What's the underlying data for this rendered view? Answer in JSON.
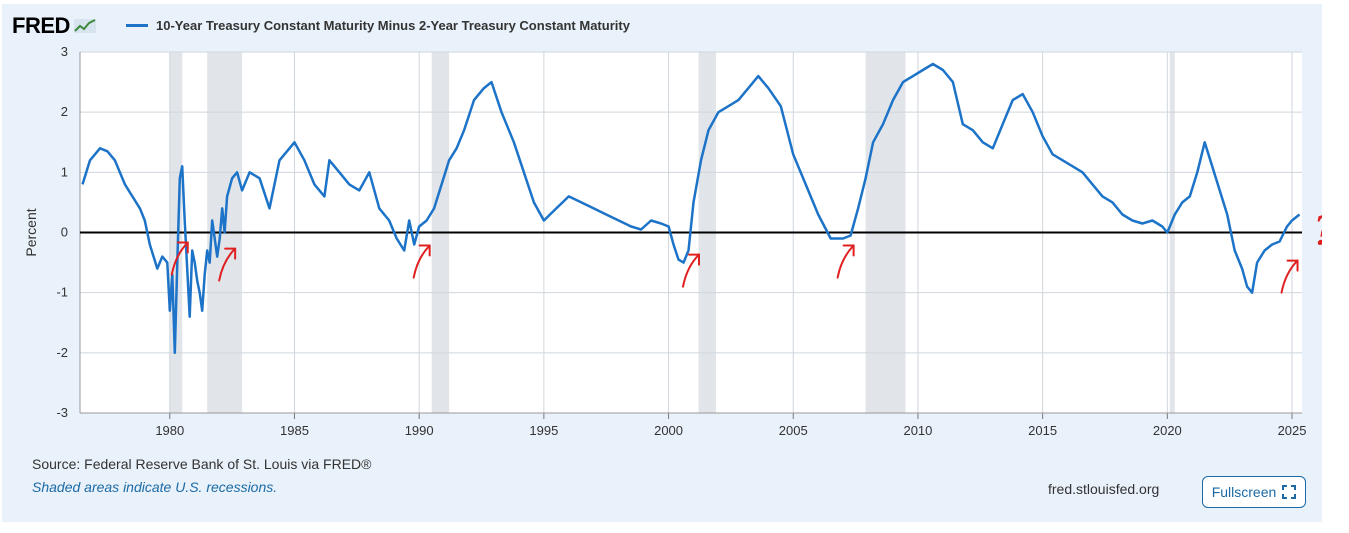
{
  "brand": {
    "name": "FRED",
    "logo_icon": "fred-chart-logo-icon"
  },
  "chart_data": {
    "type": "line",
    "series": [
      {
        "name": "10-Year Treasury Constant Maturity Minus 2-Year Treasury Constant Maturity",
        "color": "#1c73c7",
        "x": [
          1976.5,
          1976.8,
          1977.2,
          1977.5,
          1977.8,
          1978.2,
          1978.5,
          1978.8,
          1979.0,
          1979.2,
          1979.5,
          1979.7,
          1979.9,
          1980.0,
          1980.1,
          1980.2,
          1980.3,
          1980.4,
          1980.5,
          1980.6,
          1980.7,
          1980.8,
          1980.9,
          1981.0,
          1981.1,
          1981.2,
          1981.3,
          1981.4,
          1981.5,
          1981.6,
          1981.7,
          1981.8,
          1981.9,
          1982.0,
          1982.1,
          1982.2,
          1982.3,
          1982.5,
          1982.7,
          1982.9,
          1983.2,
          1983.6,
          1984.0,
          1984.4,
          1984.8,
          1985.0,
          1985.4,
          1985.8,
          1986.2,
          1986.4,
          1986.8,
          1987.2,
          1987.6,
          1988.0,
          1988.4,
          1988.8,
          1989.1,
          1989.4,
          1989.6,
          1989.8,
          1990.0,
          1990.3,
          1990.6,
          1990.9,
          1991.2,
          1991.5,
          1991.8,
          1992.2,
          1992.6,
          1992.9,
          1993.3,
          1993.8,
          1994.2,
          1994.6,
          1995.0,
          1995.5,
          1996.0,
          1996.5,
          1997.0,
          1997.5,
          1998.0,
          1998.5,
          1998.9,
          1999.3,
          1999.7,
          2000.0,
          2000.2,
          2000.4,
          2000.6,
          2000.8,
          2001.0,
          2001.3,
          2001.6,
          2002.0,
          2002.4,
          2002.8,
          2003.2,
          2003.6,
          2004.0,
          2004.5,
          2005.0,
          2005.5,
          2006.0,
          2006.5,
          2007.0,
          2007.3,
          2007.6,
          2007.9,
          2008.2,
          2008.6,
          2009.0,
          2009.4,
          2009.8,
          2010.2,
          2010.6,
          2011.0,
          2011.4,
          2011.8,
          2012.2,
          2012.6,
          2013.0,
          2013.4,
          2013.8,
          2014.2,
          2014.6,
          2015.0,
          2015.4,
          2015.8,
          2016.2,
          2016.6,
          2017.0,
          2017.4,
          2017.8,
          2018.2,
          2018.6,
          2019.0,
          2019.4,
          2019.8,
          2020.0,
          2020.3,
          2020.6,
          2020.9,
          2021.2,
          2021.5,
          2021.8,
          2022.1,
          2022.4,
          2022.7,
          2023.0,
          2023.2,
          2023.4,
          2023.6,
          2023.9,
          2024.2,
          2024.5,
          2024.8,
          2025.0,
          2025.3
        ],
        "y": [
          0.8,
          1.2,
          1.4,
          1.35,
          1.2,
          0.8,
          0.6,
          0.4,
          0.2,
          -0.2,
          -0.6,
          -0.4,
          -0.5,
          -1.3,
          -0.7,
          -2.0,
          -0.5,
          0.9,
          1.1,
          0.2,
          -0.6,
          -1.4,
          -0.3,
          -0.5,
          -0.8,
          -1.0,
          -1.3,
          -0.7,
          -0.3,
          -0.5,
          0.2,
          -0.1,
          -0.4,
          -0.1,
          0.4,
          0.0,
          0.6,
          0.9,
          1.0,
          0.7,
          1.0,
          0.9,
          0.4,
          1.2,
          1.4,
          1.5,
          1.2,
          0.8,
          0.6,
          1.2,
          1.0,
          0.8,
          0.7,
          1.0,
          0.4,
          0.2,
          -0.1,
          -0.3,
          0.2,
          -0.2,
          0.1,
          0.2,
          0.4,
          0.8,
          1.2,
          1.4,
          1.7,
          2.2,
          2.4,
          2.5,
          2.0,
          1.5,
          1.0,
          0.5,
          0.2,
          0.4,
          0.6,
          0.5,
          0.4,
          0.3,
          0.2,
          0.1,
          0.05,
          0.2,
          0.15,
          0.1,
          -0.2,
          -0.45,
          -0.5,
          -0.3,
          0.5,
          1.2,
          1.7,
          2.0,
          2.1,
          2.2,
          2.4,
          2.6,
          2.4,
          2.1,
          1.3,
          0.8,
          0.3,
          -0.1,
          -0.1,
          -0.05,
          0.4,
          0.9,
          1.5,
          1.8,
          2.2,
          2.5,
          2.6,
          2.7,
          2.8,
          2.7,
          2.5,
          1.8,
          1.7,
          1.5,
          1.4,
          1.8,
          2.2,
          2.3,
          2.0,
          1.6,
          1.3,
          1.2,
          1.1,
          1.0,
          0.8,
          0.6,
          0.5,
          0.3,
          0.2,
          0.15,
          0.2,
          0.1,
          0.0,
          0.3,
          0.5,
          0.6,
          1.0,
          1.5,
          1.1,
          0.7,
          0.3,
          -0.3,
          -0.6,
          -0.9,
          -1.0,
          -0.5,
          -0.3,
          -0.2,
          -0.15,
          0.1,
          0.2,
          0.3
        ]
      }
    ],
    "ylabel": "Percent",
    "ylim": [
      -3,
      3
    ],
    "xlim": [
      1976.4,
      2025.4
    ],
    "yticks": [
      "3",
      "2",
      "1",
      "0",
      "-1",
      "-2",
      "-3"
    ],
    "xticks": [
      "1980",
      "1985",
      "1990",
      "1995",
      "2000",
      "2005",
      "2010",
      "2015",
      "2020",
      "2025"
    ],
    "recessions": [
      [
        1980.0,
        1980.5
      ],
      [
        1981.5,
        1982.9
      ],
      [
        1990.5,
        1991.2
      ],
      [
        2001.2,
        2001.9
      ],
      [
        2007.9,
        2009.5
      ],
      [
        2020.1,
        2020.3
      ]
    ],
    "zero_line": true,
    "grid": true,
    "legend_placement": "top-left",
    "recession_color": "#e1e5ea",
    "annotation_color": "#e02020",
    "annotations": [
      {
        "type": "arrow",
        "x": 1980.4,
        "y": -0.3
      },
      {
        "type": "arrow",
        "x": 1982.3,
        "y": -0.4
      },
      {
        "type": "arrow",
        "x": 1990.1,
        "y": -0.35
      },
      {
        "type": "arrow",
        "x": 2000.9,
        "y": -0.5
      },
      {
        "type": "arrow",
        "x": 2007.1,
        "y": -0.35
      },
      {
        "type": "arrow",
        "x": 2024.9,
        "y": -0.6
      }
    ],
    "annotation_text": "?"
  },
  "footer": {
    "source": "Source: Federal Reserve Bank of St. Louis via FRED®",
    "note": "Shaded areas indicate U.S. recessions.",
    "site": "fred.stlouisfed.org",
    "fullscreen_label": "Fullscreen",
    "fullscreen_icon": "expand-icon"
  }
}
